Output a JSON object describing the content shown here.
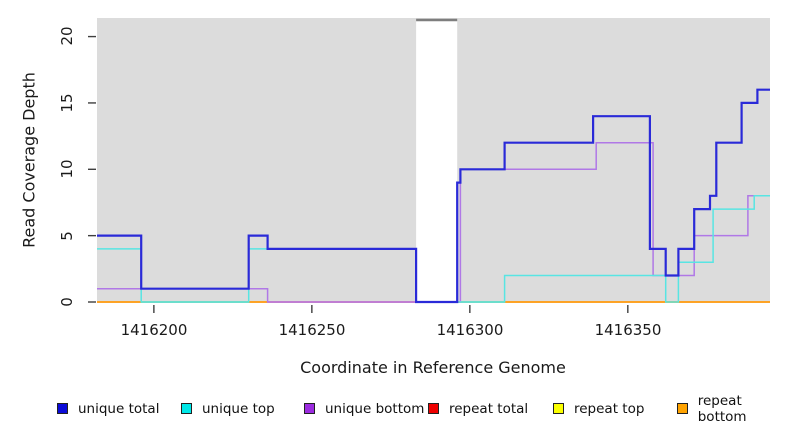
{
  "chart_data": {
    "type": "line",
    "subtype": "step",
    "title": "",
    "xlabel": "Coordinate in Reference Genome",
    "ylabel": "Read Coverage Depth",
    "xlim": [
      1416182,
      1416395
    ],
    "ylim": [
      0,
      21.4
    ],
    "x_ticks": [
      1416200,
      1416250,
      1416300,
      1416350
    ],
    "x_tick_labels": [
      "1416200",
      "1416250",
      "1416300",
      "1416350"
    ],
    "y_ticks": [
      0,
      5,
      10,
      15,
      20
    ],
    "y_tick_labels": [
      "0",
      "5",
      "10",
      "15",
      "20"
    ],
    "grid": false,
    "legend_position": "bottom",
    "plot_background": "#dcdcdc",
    "masked_region": {
      "start": 1416283,
      "end": 1416296,
      "fill": "#ffffff",
      "cap_color": "#7e7e7e"
    },
    "series": [
      {
        "name": "unique total",
        "color": "#2a2ad8",
        "legend_fill": "#0b0bd8",
        "width": 2.2,
        "z": 6,
        "steps": [
          [
            1416182,
            5
          ],
          [
            1416196,
            1
          ],
          [
            1416230,
            5
          ],
          [
            1416236,
            4
          ],
          [
            1416283,
            0
          ],
          [
            1416296,
            9
          ],
          [
            1416297,
            10
          ],
          [
            1416311,
            12
          ],
          [
            1416339,
            14
          ],
          [
            1416357,
            4
          ],
          [
            1416362,
            2
          ],
          [
            1416366,
            4
          ],
          [
            1416371,
            7
          ],
          [
            1416376,
            8
          ],
          [
            1416378,
            12
          ],
          [
            1416386,
            15
          ],
          [
            1416391,
            16
          ]
        ]
      },
      {
        "name": "unique top",
        "color": "#58e5e3",
        "legend_fill": "#00e8e8",
        "width": 1.5,
        "z": 5,
        "steps": [
          [
            1416182,
            4
          ],
          [
            1416196,
            0
          ],
          [
            1416230,
            4
          ],
          [
            1416283,
            0
          ],
          [
            1416311,
            2
          ],
          [
            1416362,
            0
          ],
          [
            1416366,
            3
          ],
          [
            1416377,
            7
          ],
          [
            1416390,
            8
          ]
        ]
      },
      {
        "name": "unique bottom",
        "color": "#b078e6",
        "legend_fill": "#9c2ce0",
        "width": 1.5,
        "z": 4,
        "steps": [
          [
            1416182,
            1
          ],
          [
            1416236,
            0
          ],
          [
            1416297,
            10
          ],
          [
            1416340,
            12
          ],
          [
            1416358,
            2
          ],
          [
            1416371,
            5
          ],
          [
            1416388,
            8
          ]
        ]
      },
      {
        "name": "repeat total",
        "color": "#e84a6f",
        "legend_fill": "#ee0000",
        "width": 1.4,
        "z": 1,
        "steps": [
          [
            1416182,
            0
          ]
        ]
      },
      {
        "name": "repeat top",
        "color": "#f5f53c",
        "legend_fill": "#fbff00",
        "width": 1.4,
        "z": 2,
        "steps": [
          [
            1416182,
            0
          ]
        ]
      },
      {
        "name": "repeat bottom",
        "color": "#ff9e1b",
        "legend_fill": "#ffa300",
        "width": 1.8,
        "z": 3,
        "steps": [
          [
            1416182,
            0
          ]
        ]
      }
    ],
    "baseline_overlap_segments": [
      {
        "start": 1416196,
        "end": 1416230,
        "color": "#8ad0a2"
      },
      {
        "start": 1416236,
        "end": 1416283,
        "color": "#ef86bd"
      },
      {
        "start": 1416297,
        "end": 1416311,
        "color": "#8ad0a2"
      }
    ]
  }
}
